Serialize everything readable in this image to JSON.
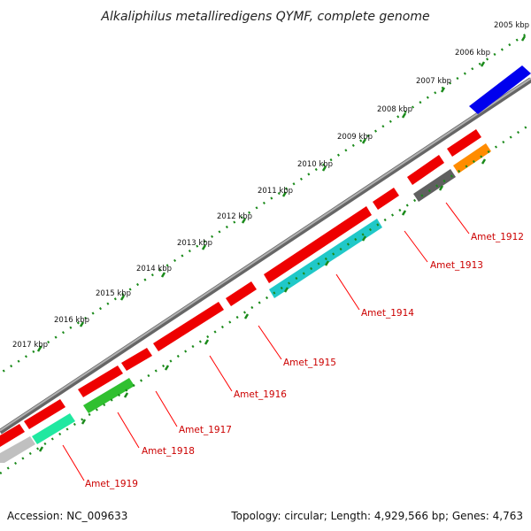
{
  "title": "Alkaliphilus metalliredigens QYMF, complete genome",
  "footer": {
    "accession": "Accession: NC_009633",
    "summary": "Topology: circular; Length: 4,929,566 bp; Genes: 4,763"
  },
  "ruler": {
    "labels": [
      "2005 kbp",
      "2006 kbp",
      "2007 kbp",
      "2008 kbp",
      "2009 kbp",
      "2010 kbp",
      "2011 kbp",
      "2012 kbp",
      "2013 kbp",
      "2014 kbp",
      "2015 kbp",
      "2016 kbp",
      "2017 kbp"
    ]
  },
  "genes": [
    {
      "name": "Amet_1912",
      "color": "#ff8c00"
    },
    {
      "name": "Amet_1913",
      "color": "#606060"
    },
    {
      "name": "Amet_1914",
      "color": "#20c8c8"
    },
    {
      "name": "Amet_1915",
      "color": "#ff0000"
    },
    {
      "name": "Amet_1916",
      "color": "#ff0000"
    },
    {
      "name": "Amet_1917",
      "color": "#ff0000"
    },
    {
      "name": "Amet_1918",
      "color": "#30c030"
    },
    {
      "name": "Amet_1919",
      "color": "#20e8a0"
    }
  ],
  "colors": {
    "forward": "#ff0000",
    "rna": "#0000ee",
    "backbone": "#808080",
    "ticks": "#1a8a1a",
    "label_lines": "#ff0000"
  }
}
